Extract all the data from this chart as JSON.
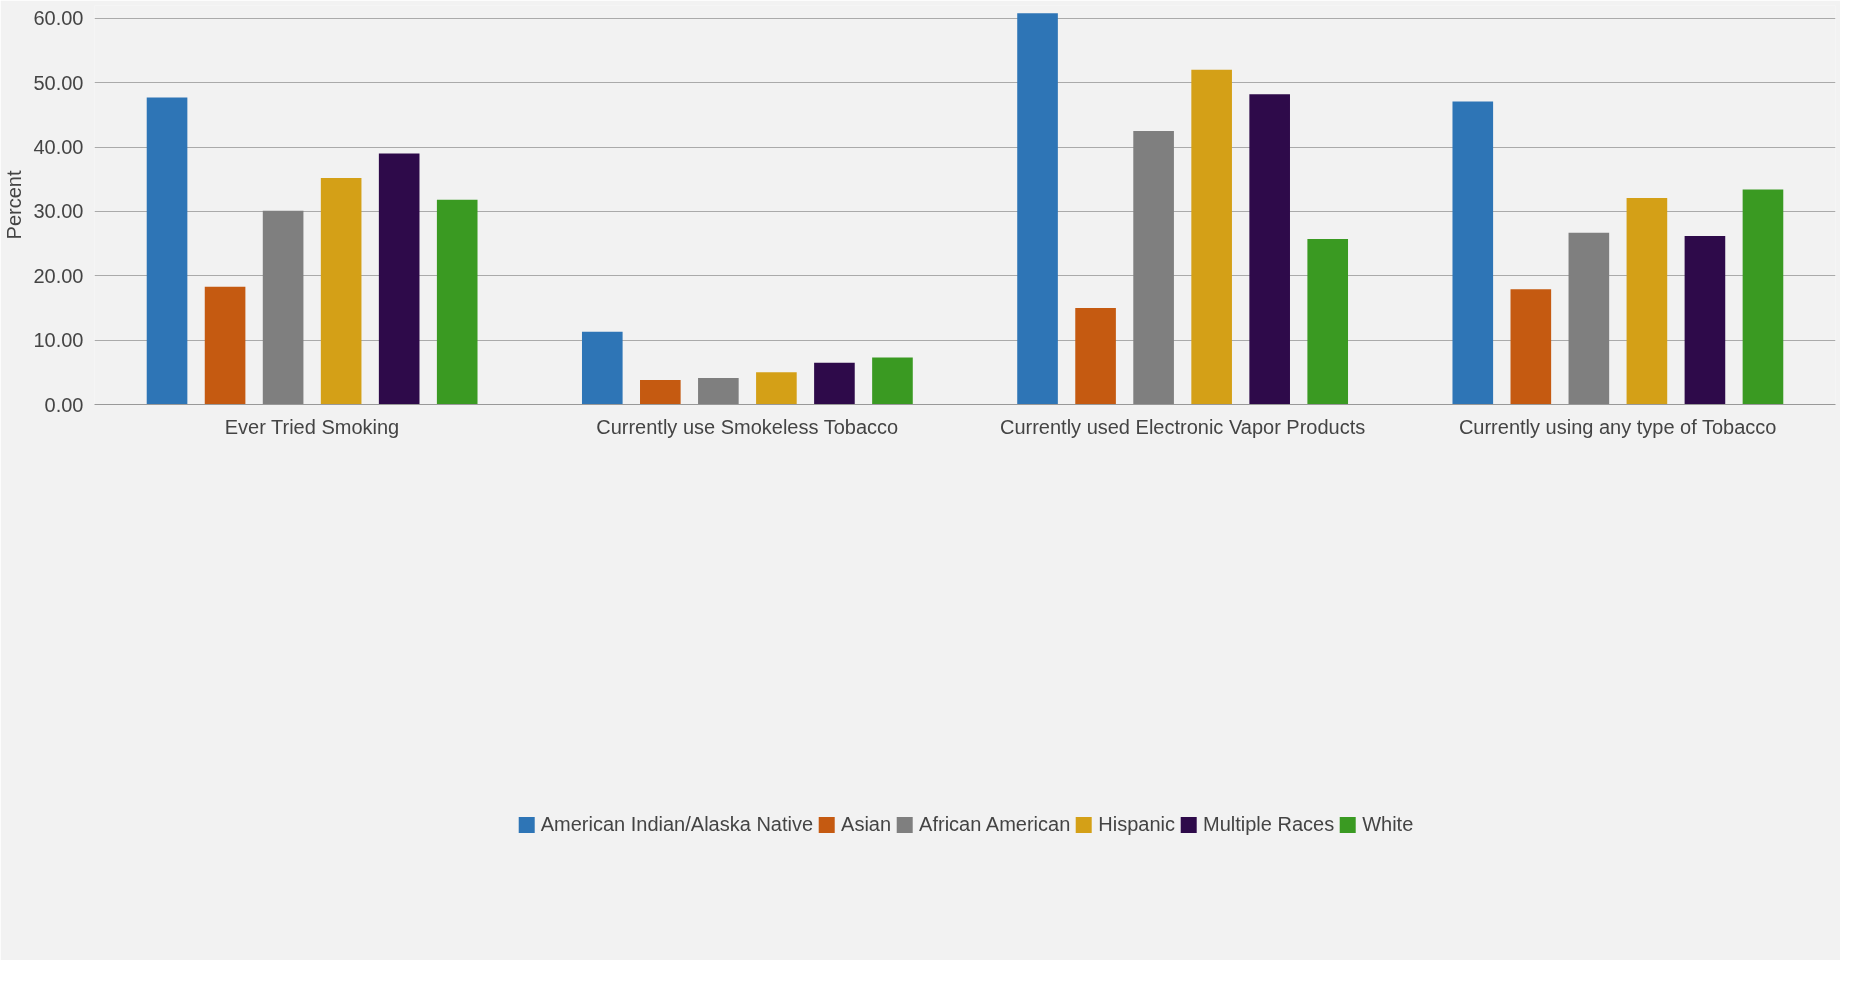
{
  "chart_data": {
    "type": "bar",
    "ylabel": "Percent",
    "categories": [
      "Ever Tried Smoking",
      "Currently use Smokeless Tobacco",
      "Currently used Electronic Vapor Products",
      "Currently using any type of Tobacco"
    ],
    "series": [
      {
        "name": "American Indian/Alaska Native",
        "color": "#2e75b6",
        "values": [
          47.7,
          11.3,
          60.8,
          47.1
        ]
      },
      {
        "name": "Asian",
        "color": "#c55a11",
        "values": [
          18.3,
          3.8,
          15.0,
          17.9
        ]
      },
      {
        "name": "African American",
        "color": "#7f7f7f",
        "values": [
          30.1,
          4.1,
          42.5,
          26.7
        ]
      },
      {
        "name": "Hispanic",
        "color": "#d4a017",
        "values": [
          35.2,
          5.0,
          52.0,
          32.1
        ]
      },
      {
        "name": "Multiple Races",
        "color": "#2e0a4a",
        "values": [
          39.0,
          6.5,
          48.2,
          26.2
        ]
      },
      {
        "name": "White",
        "color": "#3a9a22",
        "values": [
          31.8,
          7.3,
          25.7,
          33.4
        ]
      }
    ],
    "ylim": [
      0,
      62
    ],
    "yticks": [
      {
        "value": 0,
        "label": "0.00"
      },
      {
        "value": 10,
        "label": "10.00"
      },
      {
        "value": 20,
        "label": "20.00"
      },
      {
        "value": 30,
        "label": "30.00"
      },
      {
        "value": 40,
        "label": "40.00"
      },
      {
        "value": 50,
        "label": "50.00"
      },
      {
        "value": 60,
        "label": "60.00"
      }
    ],
    "grid": "y",
    "legend": "bottom"
  }
}
